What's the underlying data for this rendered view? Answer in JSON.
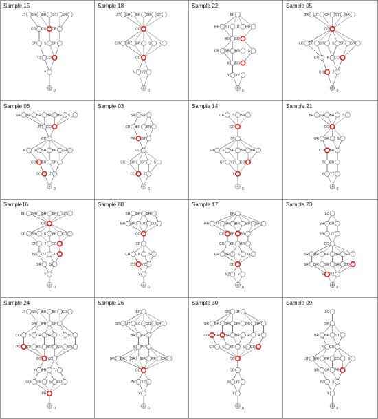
{
  "figure": {
    "colors": {
      "edge": "#555555",
      "node_stroke": "#555555",
      "node_fill": "#ffffff",
      "highlight": "#d9221c",
      "panel_border": "#9a9a9a"
    },
    "panels": [
      {
        "title": "Sample 15",
        "root_label": "0",
        "rows": [
          [
            "JT",
            "BR",
            "BR",
            "ST",
            "SR"
          ],
          [
            "CO",
            "CO",
            "CR"
          ],
          [
            "CF",
            "S",
            "SR"
          ],
          [
            "YZ",
            "CO"
          ],
          [
            "Y"
          ]
        ],
        "hi": [
          [
            1,
            1
          ],
          [
            3,
            1
          ]
        ]
      },
      {
        "title": "Sample 18",
        "root_label": "0",
        "rows": [
          [
            "JT",
            "BR",
            "BR",
            "SR",
            "ST"
          ],
          [
            "CO"
          ],
          [
            "CR",
            "BR",
            "BR",
            "S",
            "K"
          ],
          [
            "CO"
          ],
          [
            "Y",
            "YZ"
          ]
        ],
        "hi": [
          [
            1,
            0
          ],
          [
            3,
            0
          ]
        ]
      },
      {
        "title": "Sample 22",
        "root_label": "0",
        "rows": [
          [
            "BR"
          ],
          [
            "BR",
            "ST",
            "JT",
            "BR"
          ],
          [
            "BR",
            "CO"
          ],
          [
            "CR",
            "BR",
            "BR",
            "S"
          ],
          [
            "K",
            "CO"
          ],
          [
            "Y",
            "YZ"
          ]
        ],
        "hi": [
          [
            2,
            1
          ],
          [
            4,
            1
          ]
        ]
      },
      {
        "title": "Sample 05",
        "root_label": "0",
        "rows": [
          [
            "BR",
            "JT",
            "CF",
            "ST",
            "SR"
          ],
          [
            "CO"
          ],
          [
            "LC",
            "BR",
            "BR",
            "S",
            "SR",
            "SR"
          ],
          [
            "CR",
            "K",
            "CO"
          ],
          [
            "CO",
            "Z"
          ]
        ],
        "hi": [
          [
            1,
            0
          ],
          [
            3,
            2
          ],
          [
            4,
            0
          ]
        ]
      },
      {
        "title": "Sample 06",
        "root_label": "0",
        "rows": [
          [
            "SR",
            "BR",
            "BR",
            "BR",
            "BR",
            "ST"
          ],
          [
            "JT",
            "CO"
          ],
          [
            "CO"
          ],
          [
            "K",
            "S",
            "SR",
            "BR",
            "SR"
          ],
          [
            "CO",
            "BR",
            "CR"
          ],
          [
            "CO",
            "Z"
          ]
        ],
        "hi": [
          [
            1,
            1
          ],
          [
            4,
            0
          ],
          [
            5,
            0
          ]
        ]
      },
      {
        "title": "Sample 03",
        "root_label": "0",
        "rows": [
          [
            "SR",
            "SR"
          ],
          [
            "SR",
            "BR",
            "SR"
          ],
          [
            "PR",
            "ST"
          ],
          [
            "CO"
          ],
          [
            "SR",
            "BR",
            "CF",
            "S"
          ],
          [
            "CO",
            "Z"
          ]
        ],
        "hi": [
          [
            2,
            0
          ],
          [
            5,
            0
          ]
        ]
      },
      {
        "title": "Sample 14",
        "root_label": "0",
        "rows": [
          [
            "CR",
            "JT",
            "BR"
          ],
          [
            "CO"
          ],
          [
            "ST"
          ],
          [
            "SR",
            "S",
            "SR",
            "BR",
            "BR"
          ],
          [
            "CF",
            "YZ",
            "CO"
          ],
          [
            "Y"
          ]
        ],
        "hi": [
          [
            1,
            0
          ],
          [
            4,
            2
          ],
          [
            5,
            0
          ]
        ]
      },
      {
        "title": "Sample 21",
        "root_label": "0",
        "rows": [
          [
            "BR",
            "SR",
            "BR",
            "JT"
          ],
          [
            "CO"
          ],
          [
            "BR",
            "SR",
            "S"
          ],
          [
            "CO",
            "BR"
          ],
          [
            "T",
            "CR"
          ],
          [
            "Y",
            "YZ"
          ]
        ],
        "hi": [
          [
            1,
            0
          ],
          [
            3,
            0
          ]
        ]
      },
      {
        "title": "Sample16",
        "root_label": "0",
        "rows": [
          [
            "BR",
            "BR",
            "BR",
            "BR",
            "JT"
          ],
          [
            "CO"
          ],
          [
            "CR",
            "BR",
            "K",
            "BR",
            "CO"
          ],
          [
            "CF",
            "T",
            "CO"
          ],
          [
            "YZ",
            "YZ",
            "CO"
          ],
          [
            "SR",
            "S"
          ],
          [
            "Y"
          ]
        ],
        "hi": [
          [
            1,
            0
          ],
          [
            3,
            2
          ],
          [
            4,
            2
          ]
        ]
      },
      {
        "title": "Sample 08",
        "root_label": "0",
        "rows": [
          [
            "BR",
            "BR",
            "BR"
          ],
          [
            "BR",
            "BR",
            "JT",
            "CO"
          ],
          [
            "CO"
          ],
          [
            "SR"
          ],
          [
            "CR",
            "K",
            "S"
          ],
          [
            "CO",
            "YZ"
          ],
          [
            "Y"
          ]
        ],
        "hi": [
          [
            2,
            0
          ],
          [
            5,
            0
          ]
        ]
      },
      {
        "title": "Sample 17",
        "root_label": "0",
        "rows": [
          [
            "BR"
          ],
          [
            "PR",
            "JT",
            "BR",
            "BR",
            "BR",
            "SR"
          ],
          [
            "CO",
            "BR",
            "BR"
          ],
          [
            "CO",
            "SR",
            "BR"
          ],
          [
            "CR",
            "BR",
            "S",
            "CO"
          ],
          [
            "CO"
          ],
          [
            "YZ",
            "Y"
          ]
        ],
        "hi": [
          [
            2,
            0
          ],
          [
            2,
            1
          ],
          [
            5,
            0
          ]
        ]
      },
      {
        "title": "Sample 23",
        "root_label": "0",
        "rows": [
          [
            "LC"
          ],
          [
            "SR",
            "CR"
          ],
          [
            "SR",
            "JT"
          ],
          [
            "CO"
          ],
          [
            "SR",
            "BR",
            "BR",
            "BR",
            "SR"
          ],
          [
            "SR",
            "SR",
            "SR",
            "SR",
            "CO"
          ],
          [
            "Y",
            "YZ"
          ]
        ],
        "hi": [
          [
            5,
            4
          ],
          [
            6,
            0
          ]
        ]
      },
      {
        "title": "Sample 24",
        "root_label": "0",
        "rows": [
          [
            "JT",
            "ST",
            "BR",
            "BR",
            "CO"
          ],
          [
            "SR",
            "PR",
            "SR"
          ],
          [
            "CO",
            "S",
            "CR",
            "BR",
            "LC",
            "LC"
          ],
          [
            "PR",
            "SR",
            "BR",
            "BR",
            "SR",
            "SR"
          ],
          [
            "CO",
            "YZ"
          ],
          [
            "Y",
            "PR",
            "TJ"
          ],
          [
            "CO",
            "SR",
            "S",
            "CO"
          ],
          [
            "PR"
          ]
        ],
        "hi": [
          [
            3,
            0
          ],
          [
            4,
            0
          ],
          [
            7,
            0
          ]
        ]
      },
      {
        "title": "Sample 26",
        "root_label": "0",
        "rows": [
          [
            "BR"
          ],
          [
            "ST",
            "JT",
            "LC",
            "CO",
            "BR"
          ],
          [
            "BR",
            "PR"
          ],
          [
            "S",
            "PR"
          ],
          [
            "BR",
            "BR",
            "BR",
            "BR",
            "PR",
            "CR"
          ],
          [
            "CO"
          ],
          [
            "PR",
            "YZ"
          ],
          [
            "Y"
          ]
        ],
        "hi": [
          [
            5,
            0
          ]
        ]
      },
      {
        "title": "Sample 30",
        "root_label": "0",
        "rows": [
          [
            "SR",
            "JT"
          ],
          [
            "SR",
            "BR",
            "BR",
            "SR",
            "BR",
            "SR"
          ],
          [
            "CO",
            "BR",
            "BR",
            "BR",
            "CR",
            "CR"
          ],
          [
            "CR",
            "S",
            "SR",
            "S",
            "CO"
          ],
          [
            "CO"
          ],
          [
            "CO"
          ],
          [
            "S",
            "YZ"
          ],
          [
            "Y"
          ]
        ],
        "hi": [
          [
            2,
            0
          ],
          [
            2,
            1
          ],
          [
            3,
            4
          ],
          [
            4,
            0
          ]
        ]
      },
      {
        "title": "Sample 09",
        "root_label": "0",
        "rows": [
          [
            "LC"
          ],
          [
            "SR"
          ],
          [
            "BR",
            "BR",
            "ST"
          ],
          [
            "K",
            "CO"
          ],
          [
            "JT",
            "BR",
            "BR",
            "CO",
            "S"
          ],
          [
            "SR",
            "CF",
            "PR"
          ],
          [
            "YZ",
            "S"
          ],
          [
            "Y"
          ]
        ],
        "hi": [
          [
            5,
            2
          ]
        ]
      }
    ]
  }
}
